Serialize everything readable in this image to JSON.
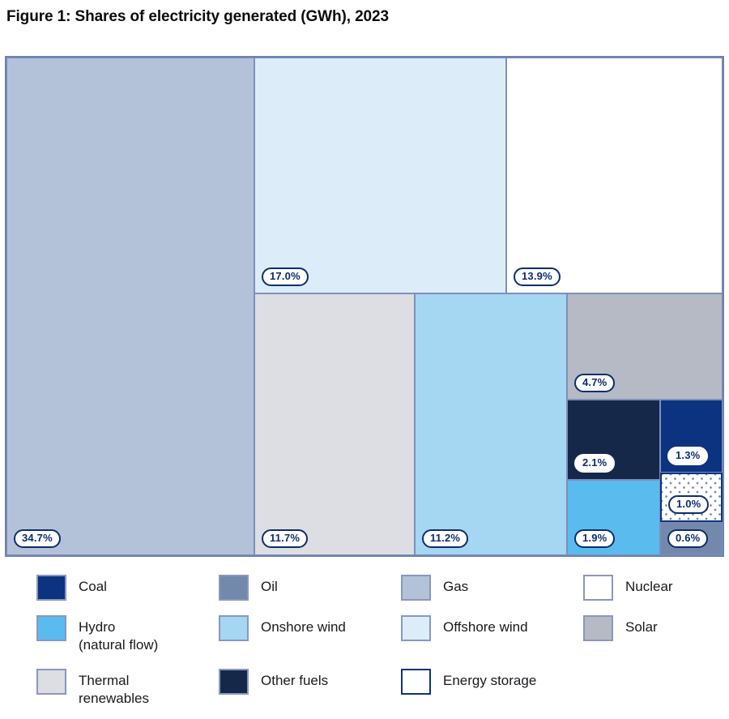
{
  "page": {
    "title": "Figure 1: Shares of electricity generated (GWh), 2023"
  },
  "chart_data": {
    "type": "treemap",
    "title": "Figure 1: Shares of electricity generated (GWh), 2023",
    "unit": "% share of electricity generated (GWh)",
    "year": "2023",
    "legend_position": "bottom",
    "items": [
      {
        "name": "Gas",
        "value": 34.7,
        "pct_label": "34.7%",
        "color": "#b3c2d8"
      },
      {
        "name": "Offshore wind",
        "value": 17.0,
        "pct_label": "17.0%",
        "color": "#dcedf9"
      },
      {
        "name": "Nuclear",
        "value": 13.9,
        "pct_label": "13.9%",
        "color": "#ffffff"
      },
      {
        "name": "Thermal renewables",
        "value": 11.7,
        "pct_label": "11.7%",
        "color": "#dcdee3"
      },
      {
        "name": "Onshore wind",
        "value": 11.2,
        "pct_label": "11.2%",
        "color": "#a5d6f2"
      },
      {
        "name": "Solar",
        "value": 4.7,
        "pct_label": "4.7%",
        "color": "#b6bac4"
      },
      {
        "name": "Other fuels",
        "value": 2.1,
        "pct_label": "2.1%",
        "color": "#16284a"
      },
      {
        "name": "Hydro (natural flow)",
        "value": 1.9,
        "pct_label": "1.9%",
        "color": "#59bbee"
      },
      {
        "name": "Coal",
        "value": 1.3,
        "pct_label": "1.3%",
        "color": "#0b3380"
      },
      {
        "name": "Energy storage",
        "value": 1.0,
        "pct_label": "1.0%",
        "color": "#ffffff",
        "pattern": "diagonal-dots"
      },
      {
        "name": "Oil",
        "value": 0.6,
        "pct_label": "0.6%",
        "color": "#7289ac"
      }
    ],
    "legend": [
      {
        "label": "Coal",
        "color": "#0b3380"
      },
      {
        "label": "Oil",
        "color": "#7289ac"
      },
      {
        "label": "Gas",
        "color": "#b3c2d8"
      },
      {
        "label": "Nuclear",
        "color": "#ffffff"
      },
      {
        "label": "Hydro\n(natural flow)",
        "color": "#59bbee"
      },
      {
        "label": "Onshore wind",
        "color": "#a5d6f2"
      },
      {
        "label": "Offshore wind",
        "color": "#dcedf9"
      },
      {
        "label": "Solar",
        "color": "#b6bac4"
      },
      {
        "label": "Thermal\nrenewables",
        "color": "#dcdee3"
      },
      {
        "label": "Other fuels",
        "color": "#16284a"
      },
      {
        "label": "Energy storage",
        "color": "#ffffff",
        "pattern": "diagonal-dots"
      }
    ]
  },
  "colors": {
    "accent_navy": "#0b2d6e",
    "cell_border": "#7e8fbc",
    "outer_border": "#6f81b0",
    "title_text": "#0b0c0c"
  }
}
